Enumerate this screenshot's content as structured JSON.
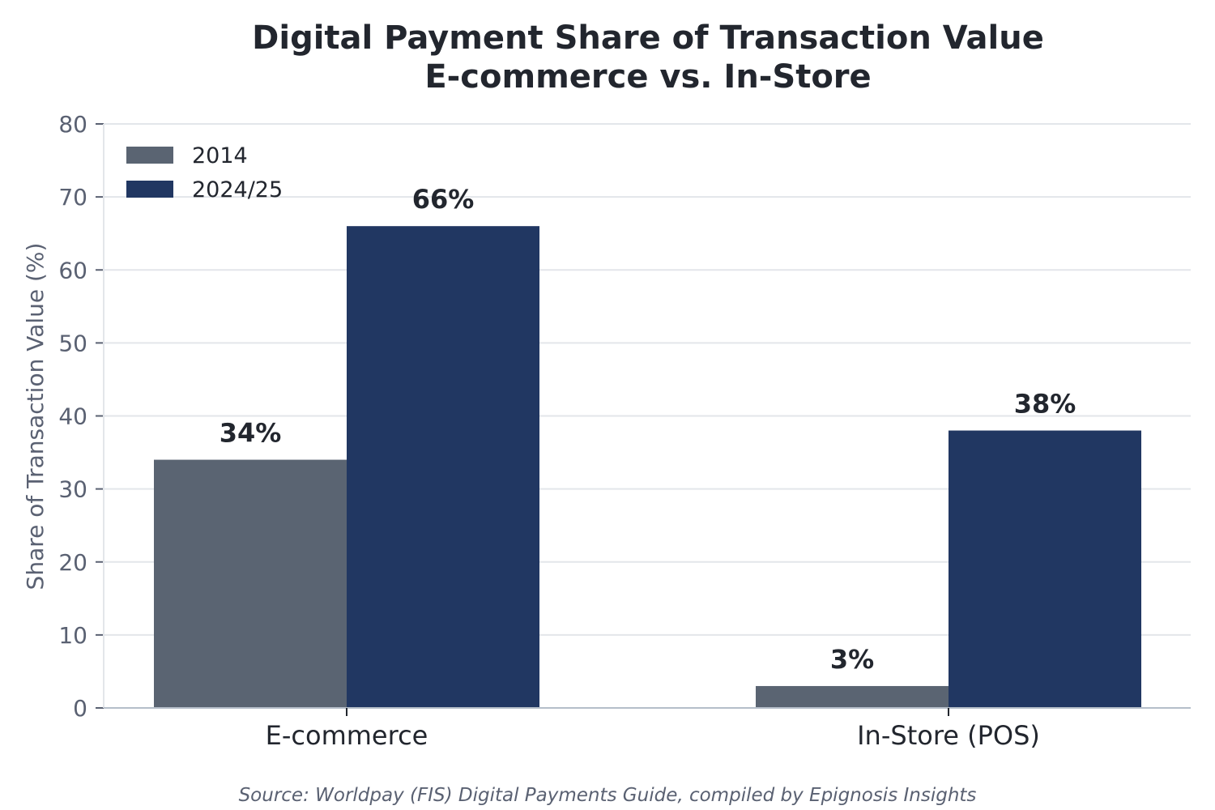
{
  "chart_data": {
    "type": "bar",
    "title_lines": [
      "Digital Payment Share of Transaction Value",
      "E-commerce vs. In-Store"
    ],
    "xlabel": "",
    "ylabel": "Share of Transaction Value (%)",
    "categories": [
      "E-commerce",
      "In-Store (POS)"
    ],
    "series": [
      {
        "name": "2014",
        "values": [
          34,
          3
        ],
        "labels": [
          "34%",
          "3%"
        ],
        "color": "#5a6472"
      },
      {
        "name": "2024/25",
        "values": [
          66,
          38
        ],
        "labels": [
          "66%",
          "38%"
        ],
        "color": "#213762"
      }
    ],
    "ylim": [
      0,
      80
    ],
    "yticks": [
      0,
      10,
      20,
      30,
      40,
      50,
      60,
      70,
      80
    ],
    "grid": "horizontal",
    "legend_position": "top-left",
    "source": "Source: Worldpay (FIS) Digital Payments Guide, compiled by Epignosis Insights"
  }
}
